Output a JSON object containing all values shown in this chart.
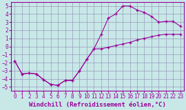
{
  "xlabel": "Windchill (Refroidissement éolien,°C)",
  "xlim": [
    -0.5,
    23.5
  ],
  "ylim": [
    -5.5,
    5.5
  ],
  "xticks": [
    0,
    1,
    2,
    3,
    4,
    5,
    6,
    7,
    8,
    9,
    10,
    11,
    12,
    13,
    14,
    15,
    16,
    17,
    18,
    19,
    20,
    21,
    22,
    23
  ],
  "yticks": [
    -5,
    -4,
    -3,
    -2,
    -1,
    0,
    1,
    2,
    3,
    4,
    5
  ],
  "bg_color": "#c8e8e8",
  "line_color": "#990099",
  "series1_x": [
    0,
    1,
    2,
    3,
    4,
    5,
    6,
    7,
    8,
    9,
    10,
    11,
    12,
    13,
    14,
    15,
    16,
    17,
    18,
    19,
    20,
    21,
    22,
    23
  ],
  "series1_y": [
    -1.8,
    -3.4,
    -3.3,
    -3.4,
    -4.1,
    -4.7,
    -4.8,
    -4.2,
    -4.2,
    -3.0,
    -1.6,
    -0.3,
    1.5,
    3.5,
    4.0,
    5.0,
    5.0,
    4.5,
    4.2,
    3.7,
    3.0,
    3.1,
    3.1,
    2.5
  ],
  "series2_x": [
    0,
    1,
    2,
    3,
    4,
    5,
    6,
    7,
    8,
    9,
    10,
    11,
    12,
    13,
    14,
    15,
    16,
    17,
    18,
    19,
    20,
    21,
    22,
    23
  ],
  "series2_y": [
    -1.8,
    -3.4,
    -3.3,
    -3.4,
    -4.1,
    -4.7,
    -4.8,
    -4.2,
    -4.2,
    -3.0,
    -1.6,
    -0.3,
    -0.3,
    -0.1,
    0.1,
    0.3,
    0.5,
    0.8,
    1.0,
    1.2,
    1.4,
    1.5,
    1.5,
    1.5
  ],
  "grid_color": "#9999bb",
  "tick_fontsize": 5.5,
  "label_fontsize": 6.5
}
